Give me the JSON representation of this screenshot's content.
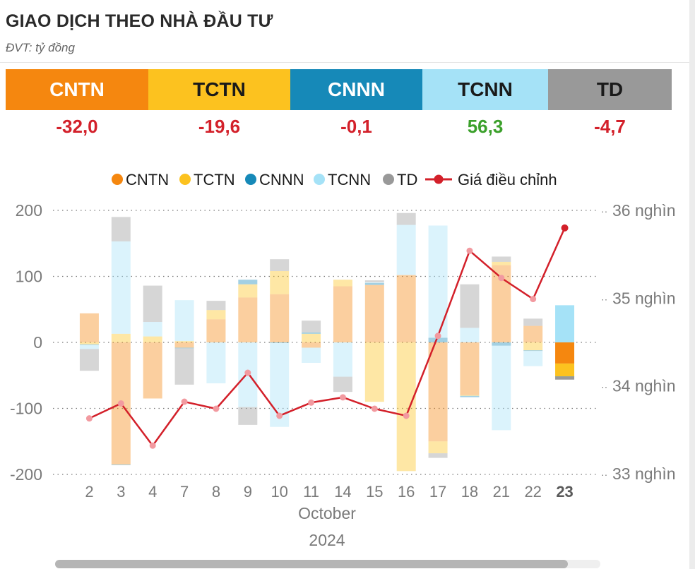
{
  "header": {
    "title": "GIAO DỊCH THEO NHÀ ĐẦU TƯ",
    "unit": "ĐVT: tỷ đồng"
  },
  "summary": [
    {
      "label": "CNTN",
      "value": "-32,0",
      "bg": "#F5870F",
      "fg": "#ffffff",
      "valueColor": "#D3202A"
    },
    {
      "label": "TCTN",
      "value": "-19,6",
      "bg": "#FCC21F",
      "fg": "#1a1a1a",
      "valueColor": "#D3202A"
    },
    {
      "label": "CNNN",
      "value": "-0,1",
      "bg": "#1689B8",
      "fg": "#ffffff",
      "valueColor": "#D3202A"
    },
    {
      "label": "TCNN",
      "value": "56,3",
      "bg": "#A5E2F7",
      "fg": "#1a1a1a",
      "valueColor": "#3BA02B"
    },
    {
      "label": "TD",
      "value": "-4,7",
      "bg": "#999999",
      "fg": "#1a1a1a",
      "valueColor": "#D3202A"
    }
  ],
  "chart_data": {
    "type": "bar",
    "stacked": true,
    "categories": [
      "2",
      "3",
      "4",
      "7",
      "8",
      "9",
      "10",
      "11",
      "14",
      "15",
      "16",
      "17",
      "18",
      "21",
      "22",
      "23"
    ],
    "highlight_category": "23",
    "xlabel_lines": [
      "October",
      "2024"
    ],
    "yticks_left": [
      "200",
      "100",
      "0",
      "-100",
      "-200"
    ],
    "ylim_left": [
      -200,
      200
    ],
    "yticks_right": [
      "36 nghìn",
      "35 nghìn",
      "34 nghìn",
      "33 nghìn"
    ],
    "ylim_right": [
      33000,
      36000
    ],
    "legend": [
      "CNTN",
      "TCTN",
      "CNNN",
      "TCNN",
      "TD",
      "Giá điều chỉnh"
    ],
    "series": [
      {
        "name": "CNTN",
        "color": "#F5870F",
        "values": [
          44,
          -185,
          -85,
          -8,
          35,
          68,
          73,
          -8,
          85,
          87,
          102,
          -150,
          -80,
          117,
          25,
          -32
        ]
      },
      {
        "name": "TCTN",
        "color": "#FCC21F",
        "values": [
          -3,
          13,
          9,
          2,
          14,
          20,
          35,
          13,
          10,
          -90,
          -195,
          -18,
          -1,
          5,
          -12,
          -19.6
        ]
      },
      {
        "name": "CNNN",
        "color": "#1689B8",
        "values": [
          -1,
          -1,
          0,
          -1,
          0,
          7,
          -1,
          2,
          0,
          3,
          0,
          7,
          -2,
          -5,
          -1,
          -0.1
        ]
      },
      {
        "name": "TCNN",
        "color": "#A5E2F7",
        "values": [
          -6,
          140,
          22,
          62,
          -62,
          -98,
          -127,
          -23,
          -52,
          1,
          76,
          170,
          22,
          -128,
          -23,
          56.3
        ]
      },
      {
        "name": "TD",
        "color": "#999999",
        "values": [
          -33,
          37,
          55,
          -55,
          14,
          -27,
          18,
          18,
          -23,
          3,
          18,
          -7,
          66,
          8,
          11,
          -4.7
        ]
      }
    ],
    "line": {
      "name": "Giá điều chỉnh",
      "color": "#D3202A",
      "values": [
        33630,
        33800,
        33320,
        33820,
        33740,
        34150,
        33660,
        33810,
        33870,
        33740,
        33660,
        34570,
        35540,
        35230,
        34990,
        35800
      ]
    }
  }
}
